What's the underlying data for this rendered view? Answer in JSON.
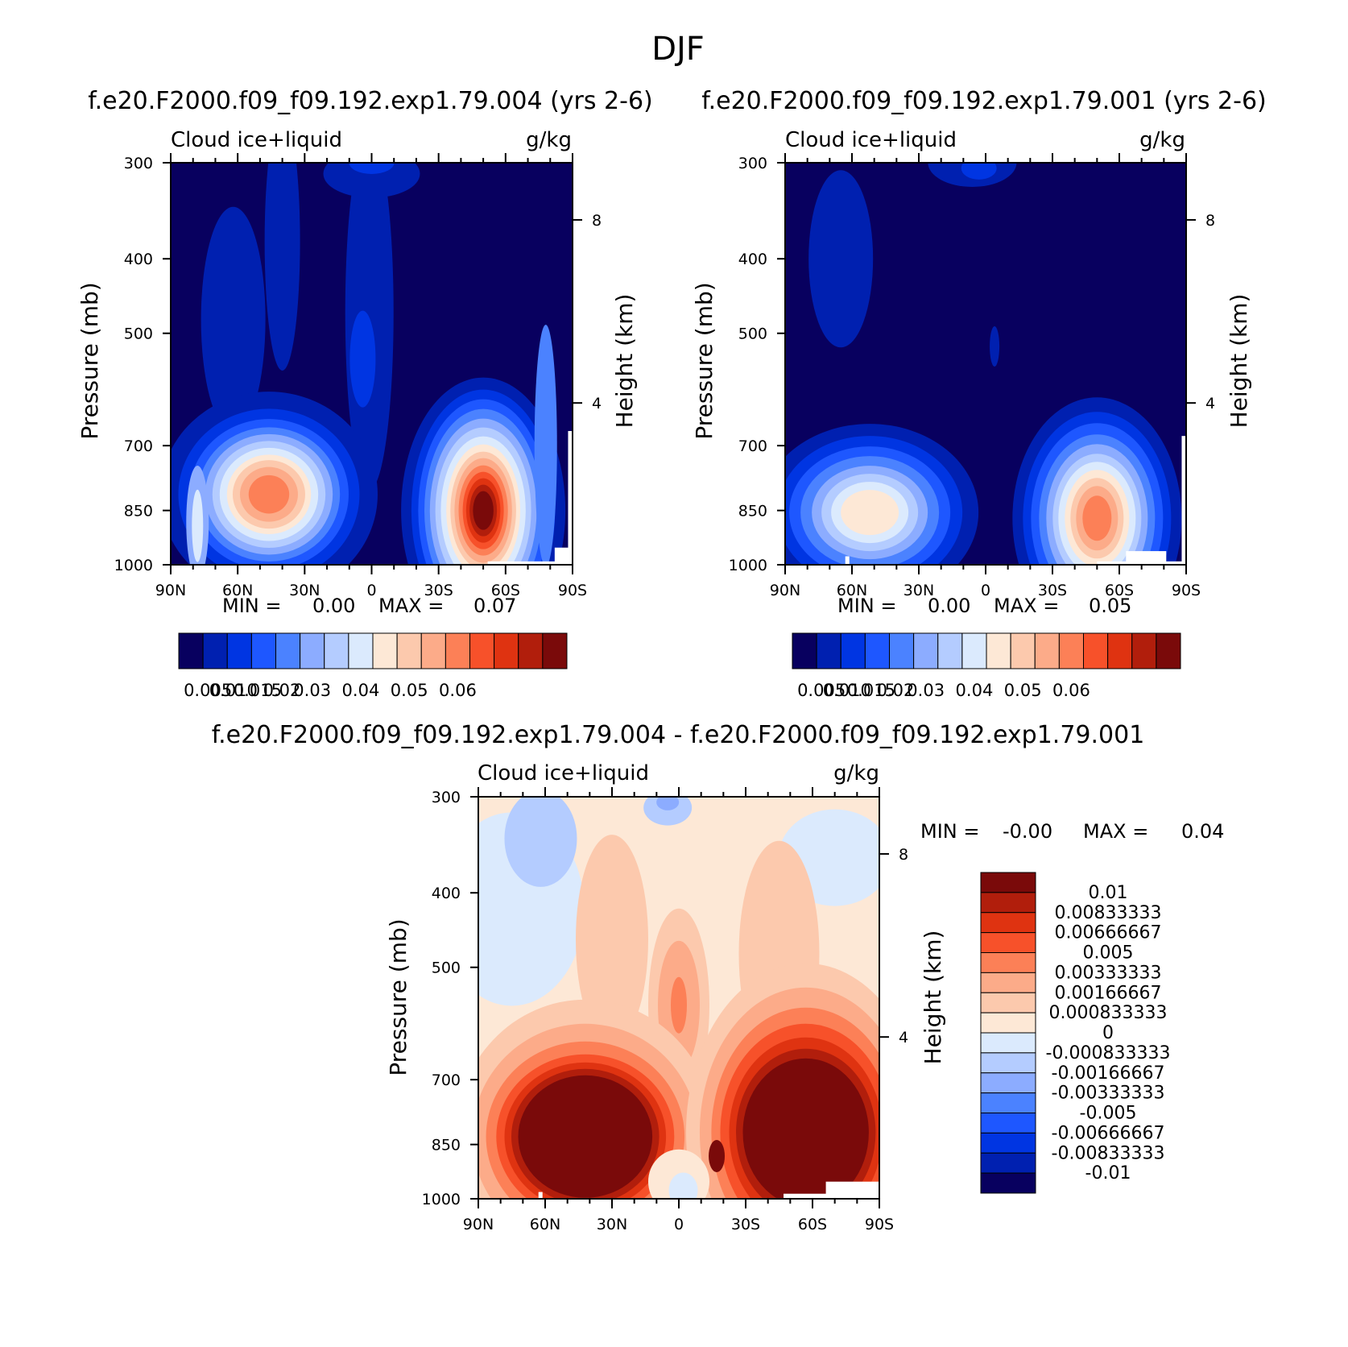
{
  "figure": {
    "title": "DJF",
    "units": "g/kg",
    "variable": "Cloud ice+liquid"
  },
  "colors": {
    "seq_scale": [
      "#08005f",
      "#0020b0",
      "#0035e2",
      "#1e57ff",
      "#4b82ff",
      "#8cacff",
      "#b4ccff",
      "#dbeafd",
      "#fde8d6",
      "#fcc9ad",
      "#fcab89",
      "#fc8057",
      "#f7512a",
      "#df3311",
      "#b11e0c",
      "#7a0a0a"
    ],
    "div_scale": [
      "#08005f",
      "#0020b0",
      "#0035e2",
      "#1e57ff",
      "#4b82ff",
      "#8cacff",
      "#b4ccff",
      "#dbeafd",
      "#fde8d6",
      "#fcc9ad",
      "#fcab89",
      "#fc8057",
      "#f7512a",
      "#df3311",
      "#b11e0c",
      "#7a0a0a"
    ]
  },
  "chart_data": [
    {
      "type": "heatmap",
      "panel": "model",
      "title": "f.e20.F2000.f09_f09.192.exp1.79.004 (yrs 2-6)",
      "left_label": "Cloud ice+liquid",
      "right_label": "g/kg",
      "xlabel": "",
      "ylabel": "Pressure (mb)",
      "ylabel_right": "Height (km)",
      "xticks": [
        "90N",
        "60N",
        "30N",
        "0",
        "30S",
        "60S",
        "90S"
      ],
      "yticks": [
        "300",
        "400",
        "500",
        "700",
        "850",
        "1000"
      ],
      "yticks_right": [
        "8",
        "4"
      ],
      "min_label": "MIN =",
      "min_value": "0.00",
      "max_label": "MAX =",
      "max_value": "0.07",
      "colorbar_labels": [
        "0.005",
        "0.010",
        "0.015",
        "0.02",
        "0.03",
        "0.04",
        "0.05",
        "0.06"
      ],
      "features": [
        {
          "lat": 45,
          "p": 830,
          "value": 0.04
        },
        {
          "lat": -52,
          "p": 880,
          "value": 0.07
        },
        {
          "lat": 78,
          "p": 880,
          "value": 0.02
        },
        {
          "lat": 0,
          "p": 540,
          "value": 0.015
        }
      ]
    },
    {
      "type": "heatmap",
      "panel": "control",
      "title": "f.e20.F2000.f09_f09.192.exp1.79.001 (yrs 2-6)",
      "left_label": "Cloud ice+liquid",
      "right_label": "g/kg",
      "xlabel": "",
      "ylabel": "Pressure (mb)",
      "ylabel_right": "Height (km)",
      "xticks": [
        "90N",
        "60N",
        "30N",
        "0",
        "30S",
        "60S",
        "90S"
      ],
      "yticks": [
        "300",
        "400",
        "500",
        "700",
        "850",
        "1000"
      ],
      "yticks_right": [
        "8",
        "4"
      ],
      "min_label": "MIN =",
      "min_value": "0.00",
      "max_label": "MAX =",
      "max_value": "0.05",
      "colorbar_labels": [
        "0.005",
        "0.010",
        "0.015",
        "0.02",
        "0.03",
        "0.04",
        "0.05",
        "0.06"
      ],
      "features": [
        {
          "lat": 55,
          "p": 860,
          "value": 0.02
        },
        {
          "lat": -50,
          "p": 880,
          "value": 0.045
        }
      ]
    },
    {
      "type": "heatmap",
      "panel": "difference",
      "title": "f.e20.F2000.f09_f09.192.exp1.79.004 - f.e20.F2000.f09_f09.192.exp1.79.001",
      "left_label": "Cloud ice+liquid",
      "right_label": "g/kg",
      "xlabel": "",
      "ylabel": "Pressure (mb)",
      "ylabel_right": "Height (km)",
      "xticks": [
        "90N",
        "60N",
        "30N",
        "0",
        "30S",
        "60S",
        "90S"
      ],
      "yticks": [
        "300",
        "400",
        "500",
        "700",
        "850",
        "1000"
      ],
      "yticks_right": [
        "8",
        "4"
      ],
      "min_label": "MIN =",
      "min_value": "-0.00",
      "max_label": "MAX =",
      "max_value": "0.04",
      "colorbar_labels": [
        "0.01",
        "0.00833333",
        "0.00666667",
        "0.005",
        "0.00333333",
        "0.00166667",
        "0.000833333",
        "0",
        "-0.000833333",
        "-0.00166667",
        "-0.00333333",
        "-0.005",
        "-0.00666667",
        "-0.00833333",
        "-0.01"
      ],
      "features": [
        {
          "lat": 45,
          "p": 810,
          "value": 0.012
        },
        {
          "lat": -55,
          "p": 830,
          "value": 0.012
        },
        {
          "lat": 0,
          "p": 560,
          "value": 0.004
        },
        {
          "lat": 70,
          "p": 380,
          "value": -0.0015
        }
      ]
    }
  ]
}
